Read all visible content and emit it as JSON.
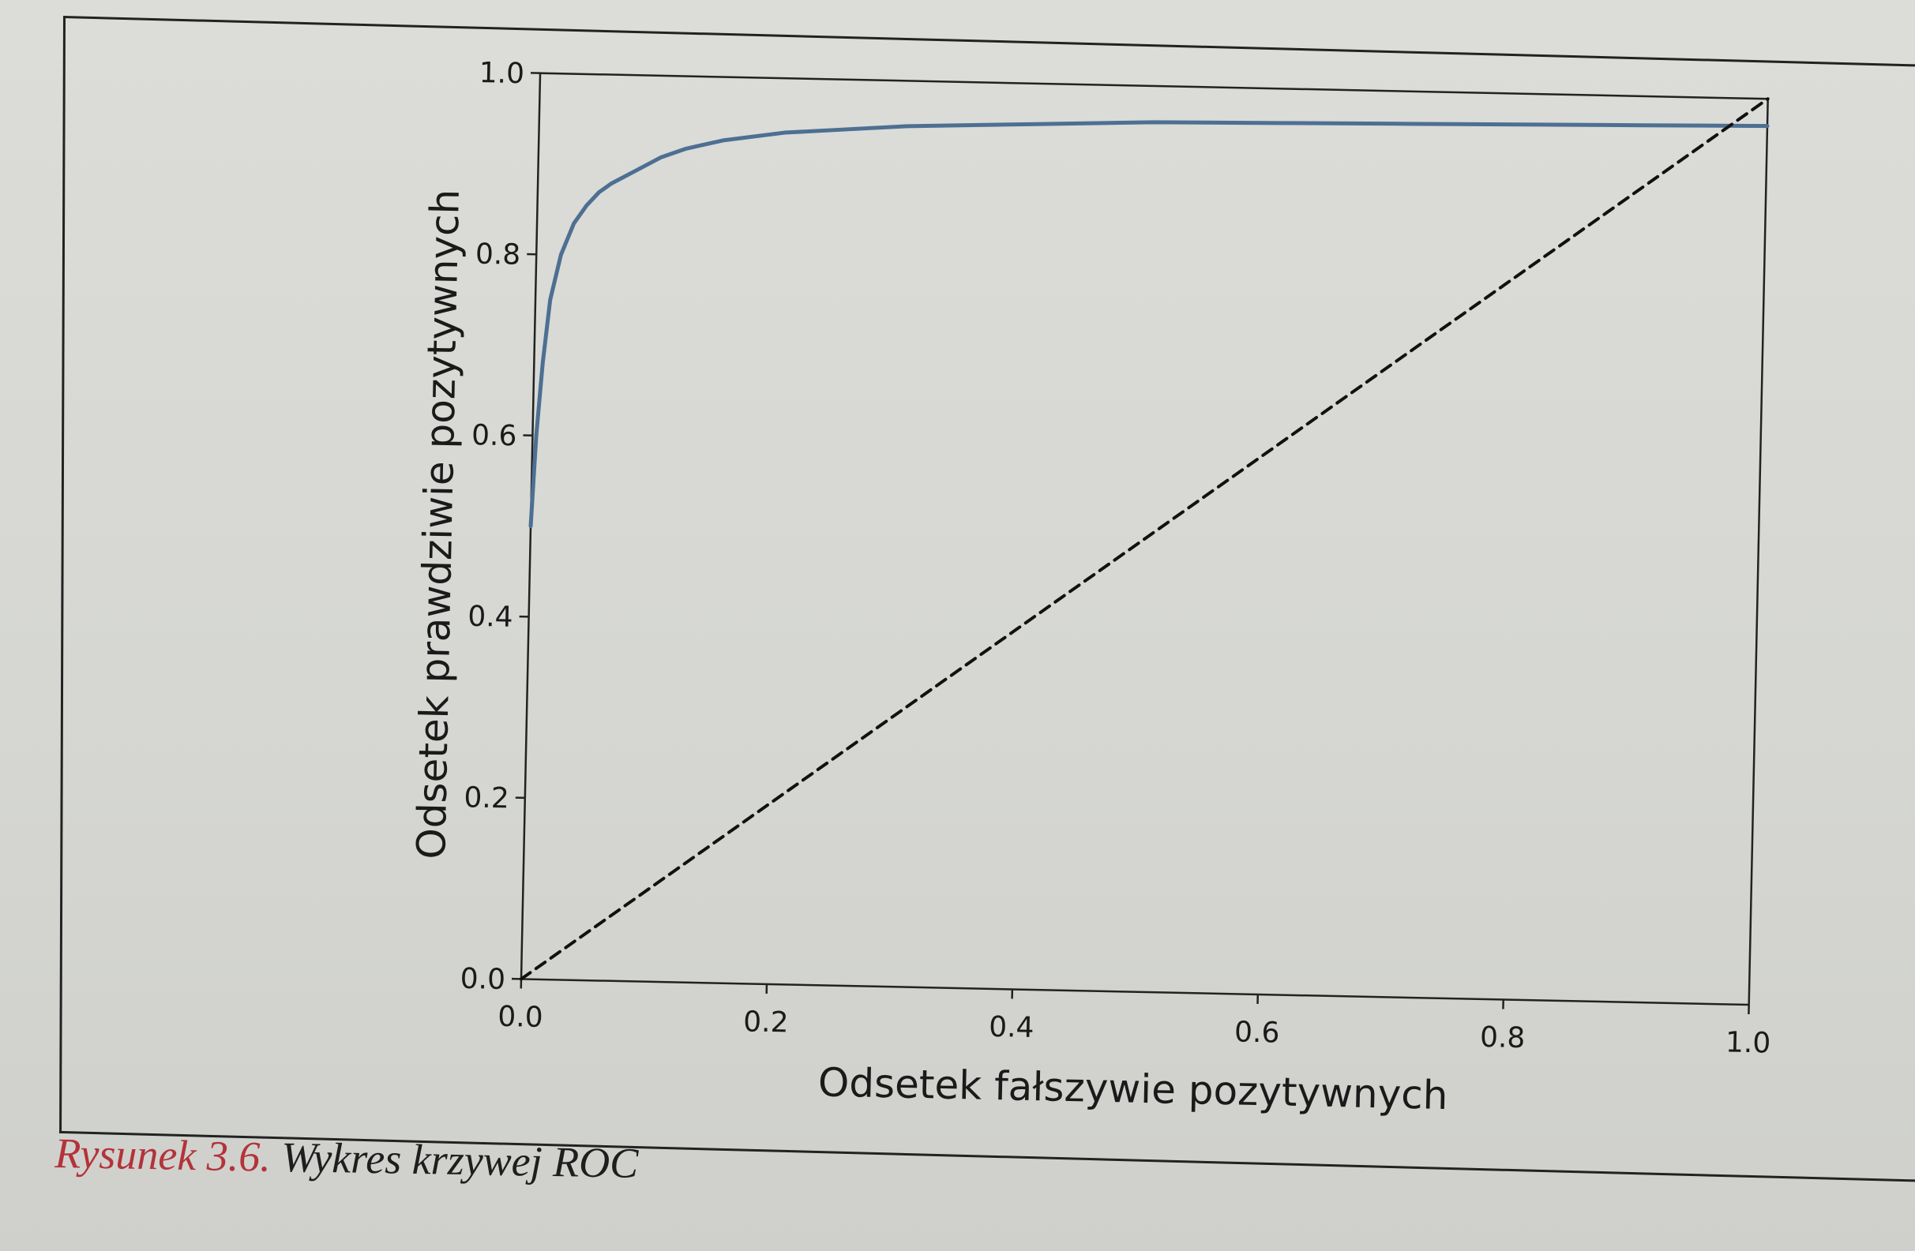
{
  "caption": {
    "figure_number": "Rysunek 3.6.",
    "text": "Wykres krzywej ROC"
  },
  "chart_data": {
    "type": "line",
    "title": "",
    "xlabel": "Odsetek fałszywie pozytywnych",
    "ylabel": "Odsetek prawdziwie pozytywnych",
    "xlim": [
      0.0,
      1.0
    ],
    "ylim": [
      0.0,
      1.0
    ],
    "x_ticks": [
      "0.0",
      "0.2",
      "0.4",
      "0.6",
      "0.8",
      "1.0"
    ],
    "y_ticks": [
      "0.0",
      "0.2",
      "0.4",
      "0.6",
      "0.8",
      "1.0"
    ],
    "grid": false,
    "series": [
      {
        "color": "#4d6f92",
        "style": "solid",
        "x": [
          0.0,
          0.003,
          0.007,
          0.012,
          0.02,
          0.03,
          0.04,
          0.05,
          0.06,
          0.08,
          0.1,
          0.12,
          0.15,
          0.2,
          0.25,
          0.3,
          0.4,
          0.5,
          0.6,
          0.7,
          0.8,
          0.9,
          1.0
        ],
        "y": [
          0.5,
          0.6,
          0.68,
          0.75,
          0.8,
          0.835,
          0.855,
          0.87,
          0.88,
          0.895,
          0.91,
          0.92,
          0.93,
          0.94,
          0.945,
          0.95,
          0.955,
          0.96,
          0.962,
          0.964,
          0.966,
          0.968,
          0.97
        ]
      },
      {
        "color": "#111111",
        "style": "dashed",
        "x": [
          0.0,
          1.0
        ],
        "y": [
          0.0,
          1.0
        ]
      }
    ]
  }
}
